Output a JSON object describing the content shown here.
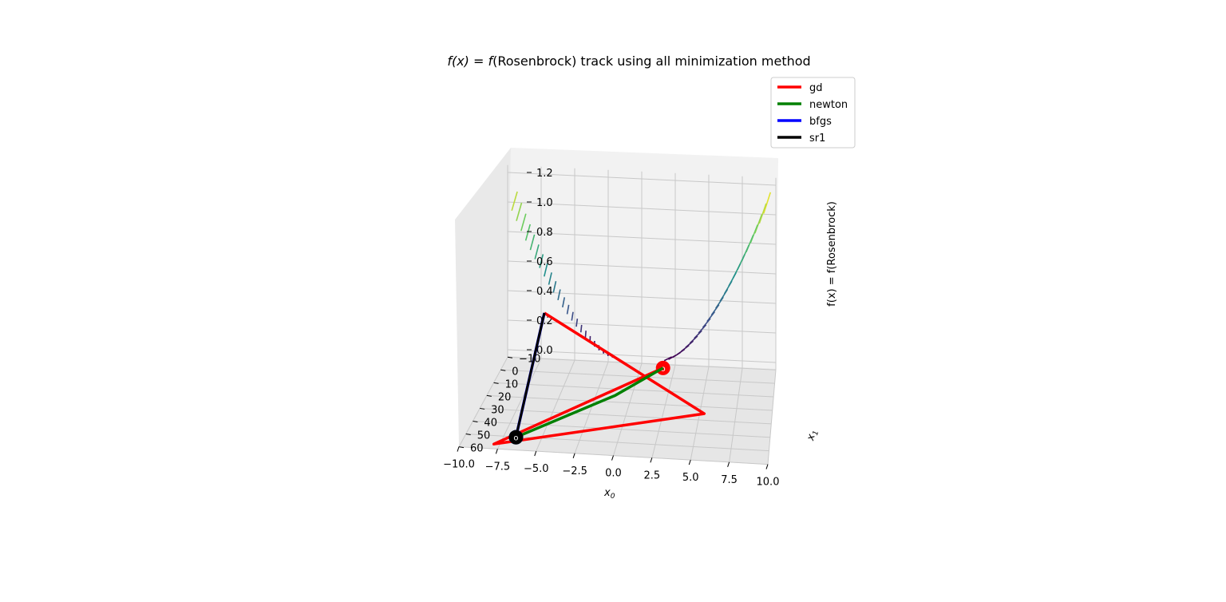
{
  "chart_data": {
    "type": "3d-contour-line",
    "title_prefix": "f(x) = f",
    "title_suffix": "(Rosenbrock) track using all minimization method",
    "xlabel": "x",
    "xlabel_sub": "0",
    "ylabel": "x",
    "ylabel_sub": "1",
    "zlabel": "f(x) = f(Rosenbrock)",
    "xlim": [
      -10.0,
      10.0
    ],
    "ylim": [
      -10,
      60
    ],
    "zlim": [
      0.0,
      1.2
    ],
    "xticks": [
      "10.0",
      "7.5",
      "5.0",
      "2.5",
      "0.0",
      "−2.5",
      "−5.0",
      "−7.5",
      "−10.0"
    ],
    "yticks": [
      "−10",
      "0",
      "10",
      "20",
      "30",
      "40",
      "50",
      "60"
    ],
    "zticks": [
      "0.0",
      "0.2",
      "0.4",
      "0.6",
      "0.8",
      "1.0",
      "1.2"
    ],
    "grid": true,
    "legend_position": "top-right",
    "colormap": "viridis",
    "series": [
      {
        "name": "gd",
        "color": "#ff0000",
        "start_marker": "×",
        "path": [
          [
            1.2,
            1.0
          ],
          [
            -5.4,
            30.0
          ],
          [
            7.7,
            61.0
          ],
          [
            -1.8,
            -2.0
          ]
        ]
      },
      {
        "name": "newton",
        "color": "#008000",
        "start_marker": "×",
        "path": [
          [
            -1.8,
            -2.0
          ],
          [
            1.0,
            20.0
          ],
          [
            6.5,
            55.0
          ]
        ]
      },
      {
        "name": "bfgs",
        "color": "#0000ff",
        "start_marker": "×",
        "path": [
          [
            7.7,
            61.0
          ],
          [
            6.5,
            55.0
          ]
        ]
      },
      {
        "name": "sr1",
        "color": "#000000",
        "start_marker": "×",
        "path": [
          [
            7.7,
            61.0
          ],
          [
            6.5,
            55.0
          ]
        ]
      }
    ]
  }
}
